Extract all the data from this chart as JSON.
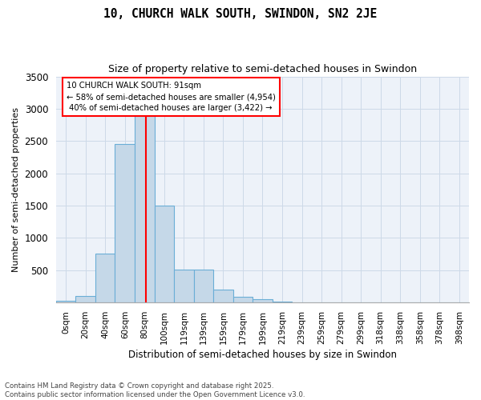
{
  "title1": "10, CHURCH WALK SOUTH, SWINDON, SN2 2JE",
  "title2": "Size of property relative to semi-detached houses in Swindon",
  "xlabel": "Distribution of semi-detached houses by size in Swindon",
  "ylabel": "Number of semi-detached properties",
  "footnote": "Contains HM Land Registry data © Crown copyright and database right 2025.\nContains public sector information licensed under the Open Government Licence v3.0.",
  "bin_labels": [
    "0sqm",
    "20sqm",
    "40sqm",
    "60sqm",
    "80sqm",
    "100sqm",
    "119sqm",
    "139sqm",
    "159sqm",
    "179sqm",
    "199sqm",
    "219sqm",
    "239sqm",
    "259sqm",
    "279sqm",
    "299sqm",
    "318sqm",
    "338sqm",
    "358sqm",
    "378sqm",
    "398sqm"
  ],
  "bar_heights": [
    30,
    100,
    760,
    2450,
    2980,
    1500,
    510,
    510,
    200,
    90,
    55,
    10,
    0,
    0,
    0,
    0,
    0,
    0,
    0,
    0,
    0
  ],
  "bar_color": "#c5d8e8",
  "bar_edge_color": "#6aaed6",
  "property_sqm": 91,
  "pct_smaller": 58,
  "count_smaller": 4954,
  "pct_larger": 40,
  "count_larger": 3422,
  "line_color": "red",
  "ylim": [
    0,
    3500
  ],
  "yticks": [
    0,
    500,
    1000,
    1500,
    2000,
    2500,
    3000,
    3500
  ],
  "grid_color": "#cdd9e8",
  "bg_color": "#edf2f9"
}
